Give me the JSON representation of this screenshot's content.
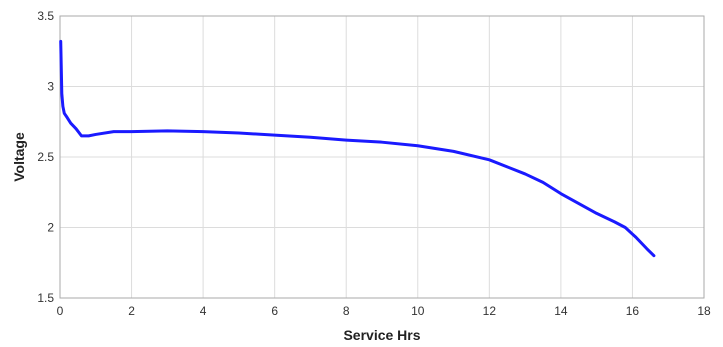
{
  "chart_data": {
    "type": "line",
    "title": "",
    "xlabel": "Service Hrs",
    "ylabel": "Voltage",
    "xlim": [
      0,
      18
    ],
    "ylim": [
      1.5,
      3.5
    ],
    "xticks": [
      0,
      2,
      4,
      6,
      8,
      10,
      12,
      14,
      16,
      18
    ],
    "yticks": [
      1.5,
      2,
      2.5,
      3,
      3.5
    ],
    "xtick_labels": [
      "0",
      "2",
      "4",
      "6",
      "8",
      "10",
      "12",
      "14",
      "16",
      "18"
    ],
    "ytick_labels": [
      "1.5",
      "2",
      "2.5",
      "3",
      "3.5"
    ],
    "grid": true,
    "legend": "none",
    "series": [
      {
        "color": "#1a1aff",
        "x": [
          0.02,
          0.05,
          0.08,
          0.12,
          0.2,
          0.3,
          0.45,
          0.6,
          0.8,
          1.0,
          1.5,
          2.0,
          3.0,
          4.0,
          5.0,
          6.0,
          7.0,
          8.0,
          9.0,
          10.0,
          11.0,
          12.0,
          12.5,
          13.0,
          13.5,
          14.0,
          14.5,
          15.0,
          15.5,
          15.8,
          16.1,
          16.4,
          16.6
        ],
        "y": [
          3.32,
          2.95,
          2.86,
          2.81,
          2.78,
          2.74,
          2.7,
          2.65,
          2.65,
          2.66,
          2.68,
          2.68,
          2.685,
          2.68,
          2.67,
          2.655,
          2.64,
          2.62,
          2.605,
          2.58,
          2.54,
          2.48,
          2.43,
          2.38,
          2.32,
          2.24,
          2.17,
          2.1,
          2.04,
          2.0,
          1.93,
          1.85,
          1.8
        ]
      }
    ]
  }
}
